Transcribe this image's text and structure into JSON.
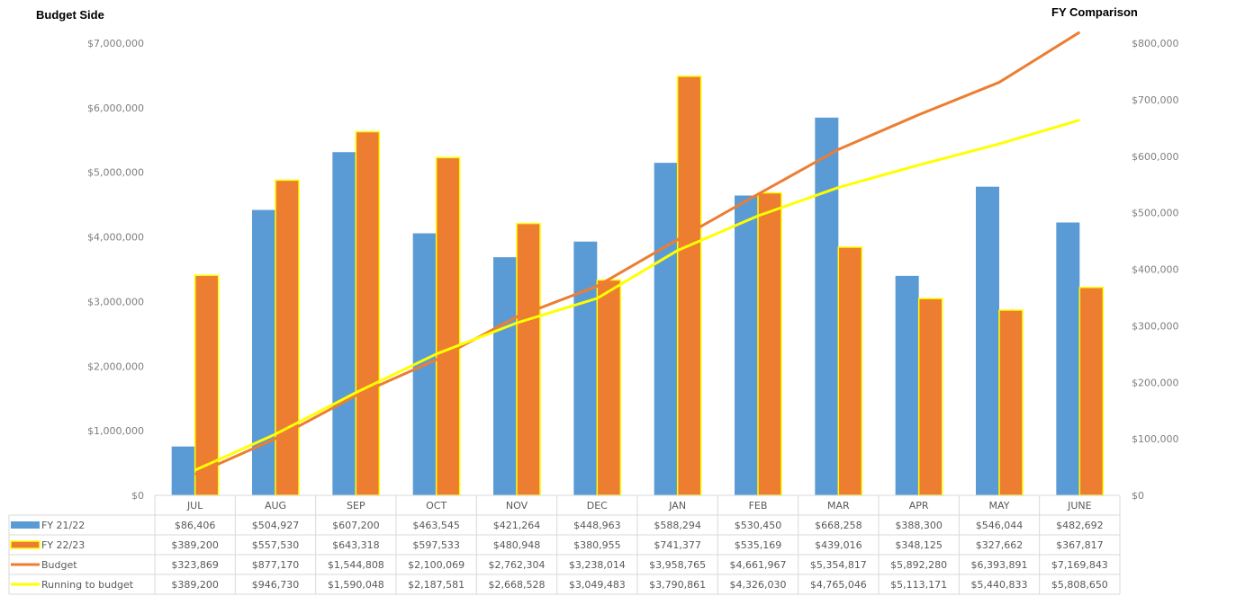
{
  "chart_data": {
    "type": "bar",
    "left_axis_title": "Budget Side",
    "right_axis_title": "FY Comparison",
    "categories": [
      "JUL",
      "AUG",
      "SEP",
      "OCT",
      "NOV",
      "DEC",
      "JAN",
      "FEB",
      "MAR",
      "APR",
      "MAY",
      "JUNE"
    ],
    "ylim_left": [
      0,
      7000000
    ],
    "ylim_right": [
      0,
      800000
    ],
    "left_ticks": [
      "$0",
      "$1,000,000",
      "$2,000,000",
      "$3,000,000",
      "$4,000,000",
      "$5,000,000",
      "$6,000,000",
      "$7,000,000"
    ],
    "right_ticks": [
      "$0",
      "$100,000",
      "$200,000",
      "$300,000",
      "$400,000",
      "$500,000",
      "$600,000",
      "$700,000",
      "$800,000"
    ],
    "grid": false,
    "series": [
      {
        "name": "FY 21/22",
        "kind": "bar",
        "axis": "right",
        "color": "#5b9bd5",
        "values": [
          86406,
          504927,
          607200,
          463545,
          421264,
          448963,
          588294,
          530450,
          668258,
          388300,
          546044,
          482692
        ],
        "labels": [
          "$86,406",
          "$504,927",
          "$607,200",
          "$463,545",
          "$421,264",
          "$448,963",
          "$588,294",
          "$530,450",
          "$668,258",
          "$388,300",
          "$546,044",
          "$482,692"
        ]
      },
      {
        "name": "FY 22/23",
        "kind": "bar",
        "axis": "right",
        "color": "#ed7d31",
        "border": "#ffff00",
        "values": [
          389200,
          557530,
          643318,
          597533,
          480948,
          380955,
          741377,
          535169,
          439016,
          348125,
          327662,
          367817
        ],
        "labels": [
          "$389,200",
          "$557,530",
          "$643,318",
          "$597,533",
          "$480,948",
          "$380,955",
          "$741,377",
          "$535,169",
          "$439,016",
          "$348,125",
          "$327,662",
          "$367,817"
        ]
      },
      {
        "name": "Budget",
        "kind": "line",
        "axis": "left",
        "color": "#ed7d31",
        "values": [
          323869,
          877170,
          1544808,
          2100069,
          2762304,
          3238014,
          3958765,
          4661967,
          5354817,
          5892280,
          6393891,
          7169843
        ],
        "labels": [
          "$323,869",
          "$877,170",
          "$1,544,808",
          "$2,100,069",
          "$2,762,304",
          "$3,238,014",
          "$3,958,765",
          "$4,661,967",
          "$5,354,817",
          "$5,892,280",
          "$6,393,891",
          "$7,169,843"
        ]
      },
      {
        "name": "Running to budget",
        "kind": "line",
        "axis": "left",
        "color": "#ffff00",
        "values": [
          389200,
          946730,
          1590048,
          2187581,
          2668528,
          3049483,
          3790861,
          4326030,
          4765046,
          5113171,
          5440833,
          5808650
        ],
        "labels": [
          "$389,200",
          "$946,730",
          "$1,590,048",
          "$2,187,581",
          "$2,668,528",
          "$3,049,483",
          "$3,790,861",
          "$4,326,030",
          "$4,765,046",
          "$5,113,171",
          "$5,440,833",
          "$5,808,650"
        ]
      }
    ]
  }
}
